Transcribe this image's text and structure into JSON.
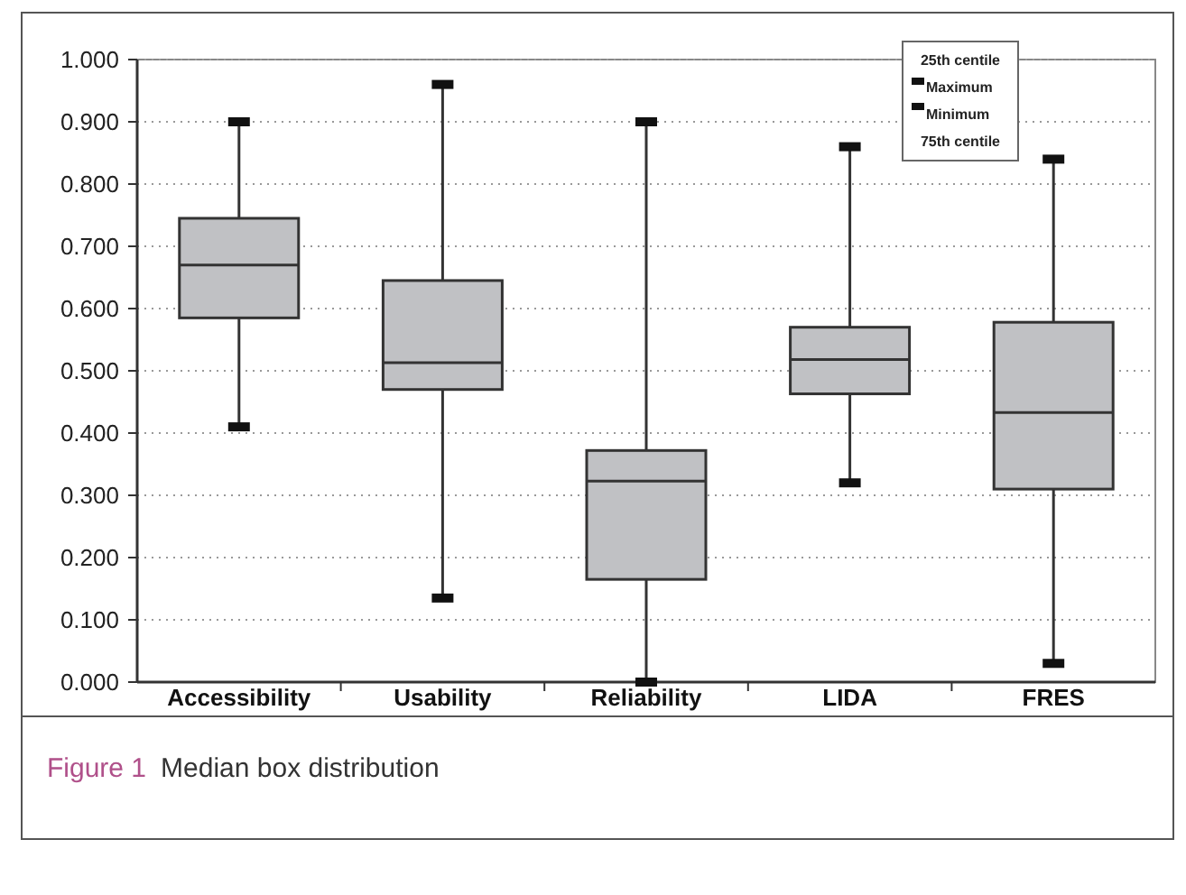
{
  "chart_data": {
    "type": "box",
    "title": "Figure 1",
    "subtitle": "Median box distribution",
    "categories": [
      "Accessibility",
      "Usability",
      "Reliability",
      "LIDA",
      "FRES"
    ],
    "boxes": [
      {
        "low": 0.41,
        "q1": 0.585,
        "median": 0.67,
        "q3": 0.745,
        "high": 0.9
      },
      {
        "low": 0.135,
        "q1": 0.47,
        "median": 0.513,
        "q3": 0.645,
        "high": 0.96
      },
      {
        "low": 0.0,
        "q1": 0.165,
        "median": 0.323,
        "q3": 0.372,
        "high": 0.9
      },
      {
        "low": 0.32,
        "q1": 0.463,
        "median": 0.518,
        "q3": 0.57,
        "high": 0.86
      },
      {
        "low": 0.03,
        "q1": 0.31,
        "median": 0.433,
        "q3": 0.578,
        "high": 0.84
      }
    ],
    "color": "#c0c1c4",
    "ylim": [
      0,
      1
    ],
    "yticks": [
      {
        "value": 0,
        "label": "0.000"
      },
      {
        "value": 0.1,
        "label": "0.100"
      },
      {
        "value": 0.2,
        "label": "0.200"
      },
      {
        "value": 0.3,
        "label": "0.300"
      },
      {
        "value": 0.4,
        "label": "0.400"
      },
      {
        "value": 0.5,
        "label": "0.500"
      },
      {
        "value": 0.6,
        "label": "0.600"
      },
      {
        "value": 0.7,
        "label": "0.700"
      },
      {
        "value": 0.8,
        "label": "0.800"
      },
      {
        "value": 0.9,
        "label": "0.900"
      },
      {
        "value": 1,
        "label": "1.000"
      }
    ],
    "grid": "y",
    "annotations": [
      "25th centile",
      "Maximum",
      "Minimum",
      "75th centile"
    ]
  }
}
